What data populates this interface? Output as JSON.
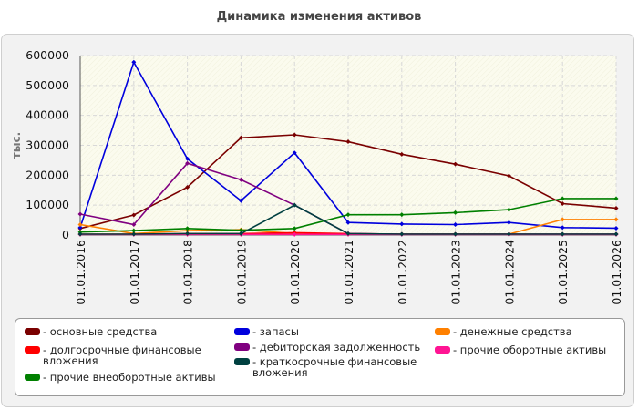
{
  "title": "Динамика изменения активов",
  "chart_data": {
    "type": "line",
    "title": "Динамика изменения активов",
    "ylabel": "тыс.",
    "xlabel": "",
    "ylim": [
      0,
      600000
    ],
    "yticks": [
      0,
      100000,
      200000,
      300000,
      400000,
      500000,
      600000
    ],
    "categories": [
      "01.01.2016",
      "01.01.2017",
      "01.01.2018",
      "01.01.2019",
      "01.01.2020",
      "01.01.2021",
      "01.01.2022",
      "01.01.2023",
      "01.01.2024",
      "01.01.2025",
      "01.01.2026"
    ],
    "grid": true,
    "legend_position": "bottom",
    "series": [
      {
        "name": "- основные средства",
        "color": "#7a0000",
        "values": [
          22000,
          67000,
          160000,
          325000,
          335000,
          312000,
          270000,
          237000,
          198000,
          105000,
          90000
        ]
      },
      {
        "name": "- запасы",
        "color": "#0000dd",
        "values": [
          25000,
          578000,
          255000,
          115000,
          275000,
          42000,
          37000,
          35000,
          42000,
          25000,
          23000
        ]
      },
      {
        "name": "- денежные средства",
        "color": "#ff8000",
        "values": [
          35000,
          5000,
          15000,
          18000,
          5000,
          3000,
          3000,
          3000,
          3000,
          52000,
          52000
        ]
      },
      {
        "name": "- долгосрочные финансовые вложения",
        "color": "#ff0000",
        "values": [
          3000,
          3000,
          5000,
          5000,
          8000,
          5000,
          3000,
          3000,
          3000,
          3000,
          3000
        ]
      },
      {
        "name": "- дебиторская задолженность",
        "color": "#800080",
        "values": [
          70000,
          35000,
          240000,
          185000,
          100000,
          5000,
          3000,
          3000,
          3000,
          3000,
          3000
        ]
      },
      {
        "name": "- прочие оборотные активы",
        "color": "#ff1493",
        "values": [
          2000,
          2000,
          2000,
          2000,
          2000,
          2000,
          2000,
          2000,
          2000,
          2000,
          2000
        ]
      },
      {
        "name": "- прочие внеоборотные активы",
        "color": "#008000",
        "values": [
          10000,
          15000,
          22000,
          16000,
          22000,
          68000,
          68000,
          75000,
          85000,
          122000,
          122000
        ]
      },
      {
        "name": "- краткосрочные финансовые вложения",
        "color": "#004040",
        "values": [
          3000,
          3000,
          5000,
          5000,
          100000,
          5000,
          3000,
          3000,
          3000,
          3000,
          3000
        ]
      }
    ]
  }
}
